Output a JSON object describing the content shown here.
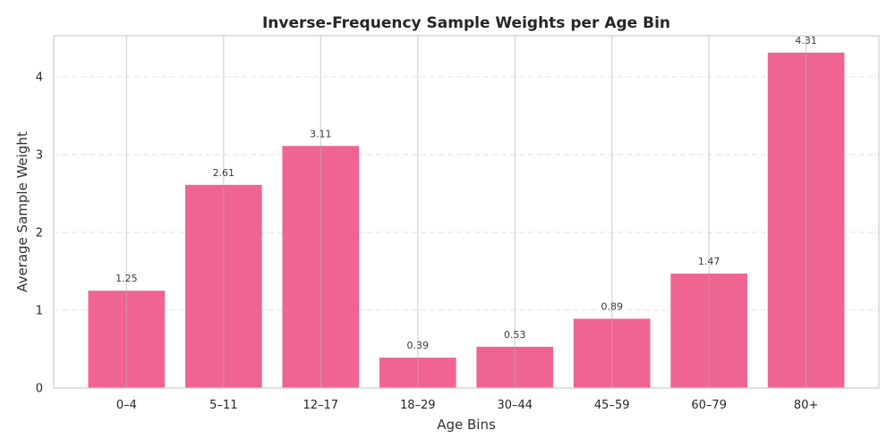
{
  "chart_data": {
    "type": "bar",
    "title": "Inverse-Frequency Sample Weights per Age Bin",
    "xlabel": "Age Bins",
    "ylabel": "Average Sample Weight",
    "categories": [
      "0–4",
      "5–11",
      "12–17",
      "18–29",
      "30–44",
      "45–59",
      "60–79",
      "80+"
    ],
    "values": [
      1.25,
      2.61,
      3.11,
      0.39,
      0.53,
      0.89,
      1.47,
      4.31
    ],
    "data_labels": [
      "1.25",
      "2.61",
      "3.11",
      "0.39",
      "0.53",
      "0.89",
      "1.47",
      "4.31"
    ],
    "yticks": [
      0,
      1,
      2,
      3,
      4
    ],
    "ylim": [
      0,
      4.526
    ],
    "bar_color": "#ef5c8c",
    "grid": "y-dashed, x-solid",
    "legend": "none"
  }
}
